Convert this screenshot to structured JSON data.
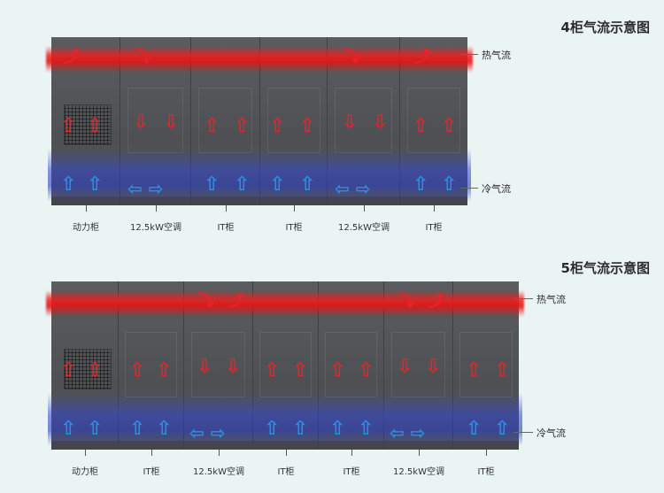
{
  "diagram4": {
    "title": "4柜气流示意图",
    "hot_label": "热气流",
    "cold_label": "冷气流",
    "cabinets": [
      "动力柜",
      "12.5kW空调",
      "IT柜",
      "IT柜",
      "12.5kW空调",
      "IT柜"
    ]
  },
  "diagram5": {
    "title": "5柜气流示意图",
    "hot_label": "热气流",
    "cold_label": "冷气流",
    "cabinets": [
      "动力柜",
      "IT柜",
      "12.5kW空调",
      "IT柜",
      "IT柜",
      "12.5kW空调",
      "IT柜"
    ]
  },
  "colors": {
    "hot": "#e8232a",
    "cold": "#2c8fe0",
    "cabinet": "#545558",
    "background": "#eaf4f3"
  },
  "icons": [
    "up-arrow-icon",
    "down-arrow-icon",
    "left-right-arrow-icon"
  ]
}
